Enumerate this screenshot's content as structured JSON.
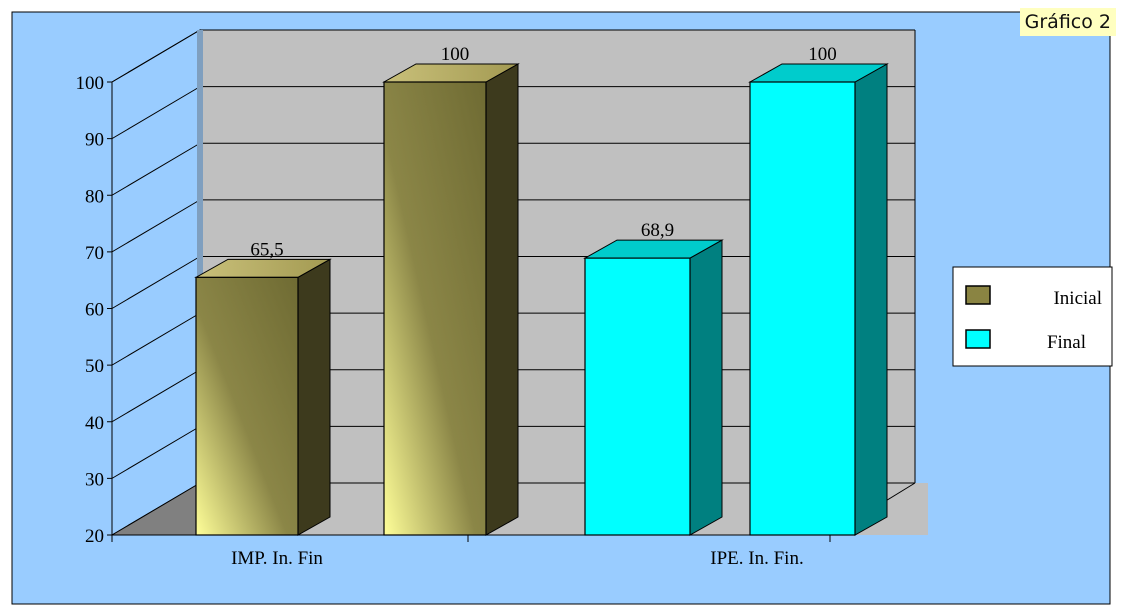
{
  "badge": "Gráfico 2",
  "chart_data": {
    "type": "bar",
    "title": "",
    "xlabel": "",
    "ylabel": "",
    "ylim": [
      20,
      100
    ],
    "yticks": [
      20,
      30,
      40,
      50,
      60,
      70,
      80,
      90,
      100
    ],
    "grid": true,
    "legend_position": "right",
    "groups": [
      {
        "label": "IMP. In. Fin",
        "bars": [
          {
            "series": "Inicial",
            "value": 65.5,
            "label": "65,5"
          },
          {
            "series": "Inicial",
            "value": 100,
            "label": "100"
          }
        ]
      },
      {
        "label": "IPE. In.  Fin.",
        "bars": [
          {
            "series": "Final",
            "value": 68.9,
            "label": "68,9"
          },
          {
            "series": "Final",
            "value": 100,
            "label": "100"
          }
        ]
      }
    ],
    "legend": [
      {
        "name": "Inicial",
        "color": "#8a8442"
      },
      {
        "name": "Final",
        "color": "#00ffff"
      }
    ],
    "colors": {
      "background": "#99ccff",
      "wall": "#c0c0c0",
      "floor": "#808080",
      "olive_front": "#8b8647",
      "olive_light": "#ffff99",
      "olive_top": "#a39a52",
      "olive_side": "#3d3a1d",
      "cyan_front": "#00ffff",
      "cyan_top": "#00cccc",
      "cyan_side": "#008080"
    }
  }
}
